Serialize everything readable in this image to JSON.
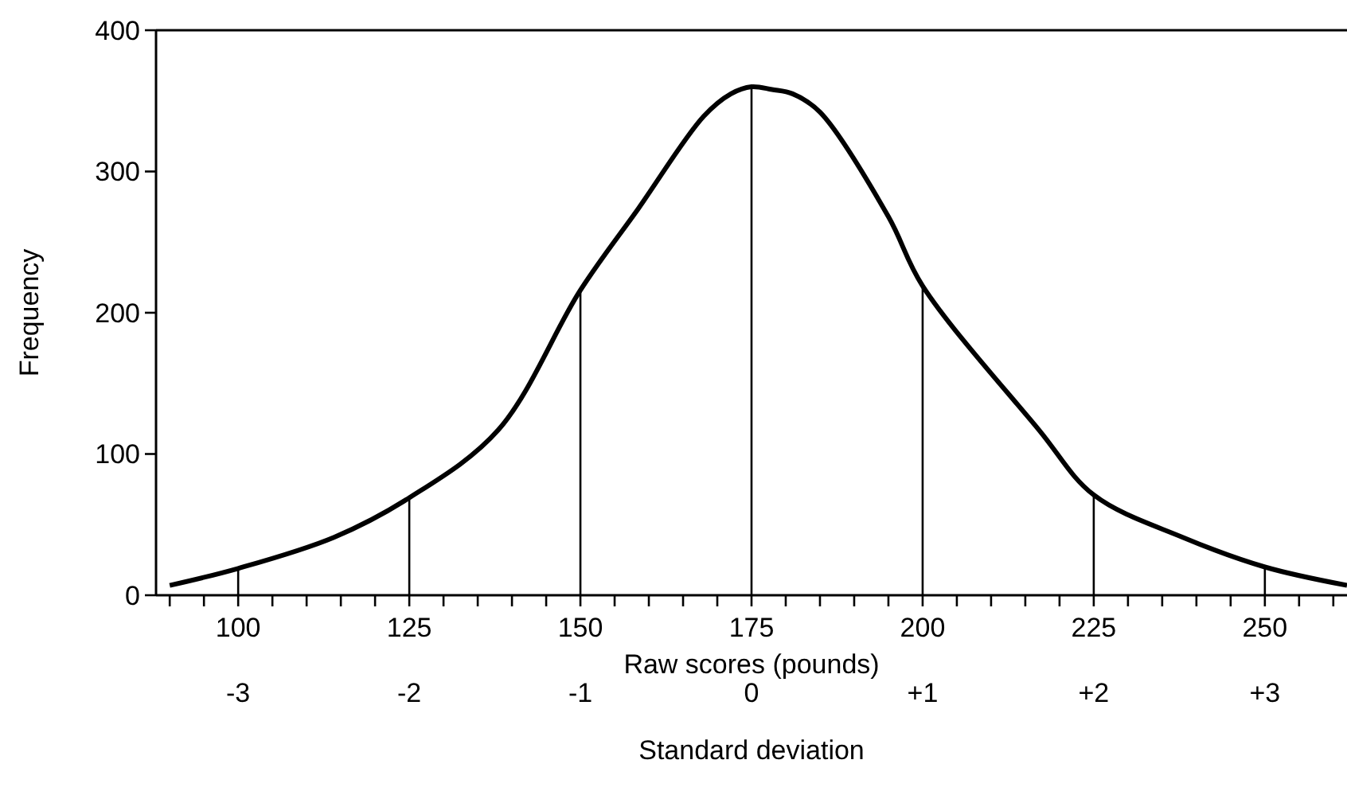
{
  "chart_data": {
    "type": "line",
    "xlabel": "Raw scores (pounds)",
    "ylabel": "Frequency",
    "x2label": "Standard deviation",
    "series": [
      {
        "color": "#000000",
        "x": [
          90,
          100,
          114,
          125,
          138,
          150,
          158.5,
          168,
          172,
          175,
          178,
          181,
          185,
          195,
          200,
          217,
          225,
          238,
          250,
          262
        ],
        "values": [
          7,
          19,
          41,
          69,
          117,
          216,
          274,
          339,
          355,
          360,
          358,
          355,
          342,
          268,
          219,
          117,
          71,
          41,
          20,
          7
        ]
      },
      {
        "type": "bar",
        "color": "#000000",
        "x": [
          100,
          125,
          150,
          175,
          200,
          225,
          250
        ],
        "values": [
          19,
          69,
          216,
          360,
          219,
          71,
          20
        ]
      }
    ],
    "xlim": [
      88,
      262
    ],
    "ylim": [
      0,
      400
    ],
    "xticks": [
      {
        "value": 90,
        "label": null
      },
      {
        "value": 95,
        "label": null
      },
      100,
      {
        "value": 105,
        "label": null
      },
      {
        "value": 110,
        "label": null
      },
      {
        "value": 115,
        "label": null
      },
      {
        "value": 120,
        "label": null
      },
      125,
      {
        "value": 130,
        "label": null
      },
      {
        "value": 135,
        "label": null
      },
      {
        "value": 140,
        "label": null
      },
      {
        "value": 145,
        "label": null
      },
      150,
      {
        "value": 155,
        "label": null
      },
      {
        "value": 160,
        "label": null
      },
      {
        "value": 165,
        "label": null
      },
      {
        "value": 170,
        "label": null
      },
      175,
      {
        "value": 180,
        "label": null
      },
      {
        "value": 185,
        "label": null
      },
      {
        "value": 190,
        "label": null
      },
      {
        "value": 195,
        "label": null
      },
      200,
      {
        "value": 205,
        "label": null
      },
      {
        "value": 210,
        "label": null
      },
      {
        "value": 215,
        "label": null
      },
      {
        "value": 220,
        "label": null
      },
      225,
      {
        "value": 230,
        "label": null
      },
      {
        "value": 235,
        "label": null
      },
      {
        "value": 240,
        "label": null
      },
      {
        "value": 245,
        "label": null
      },
      250,
      {
        "value": 255,
        "label": null
      },
      {
        "value": 260,
        "label": null
      }
    ],
    "yticks": [
      0,
      100,
      200,
      300,
      400
    ],
    "x2lim": [
      -3.48,
      3.48
    ],
    "x2ticks": [
      -3,
      -2,
      -1,
      0,
      {
        "value": 1,
        "label": "+1"
      },
      {
        "value": 2,
        "label": "+2"
      },
      {
        "value": 3,
        "label": "+3"
      }
    ],
    "marker": "none",
    "line_style": "solid",
    "grid": false
  }
}
